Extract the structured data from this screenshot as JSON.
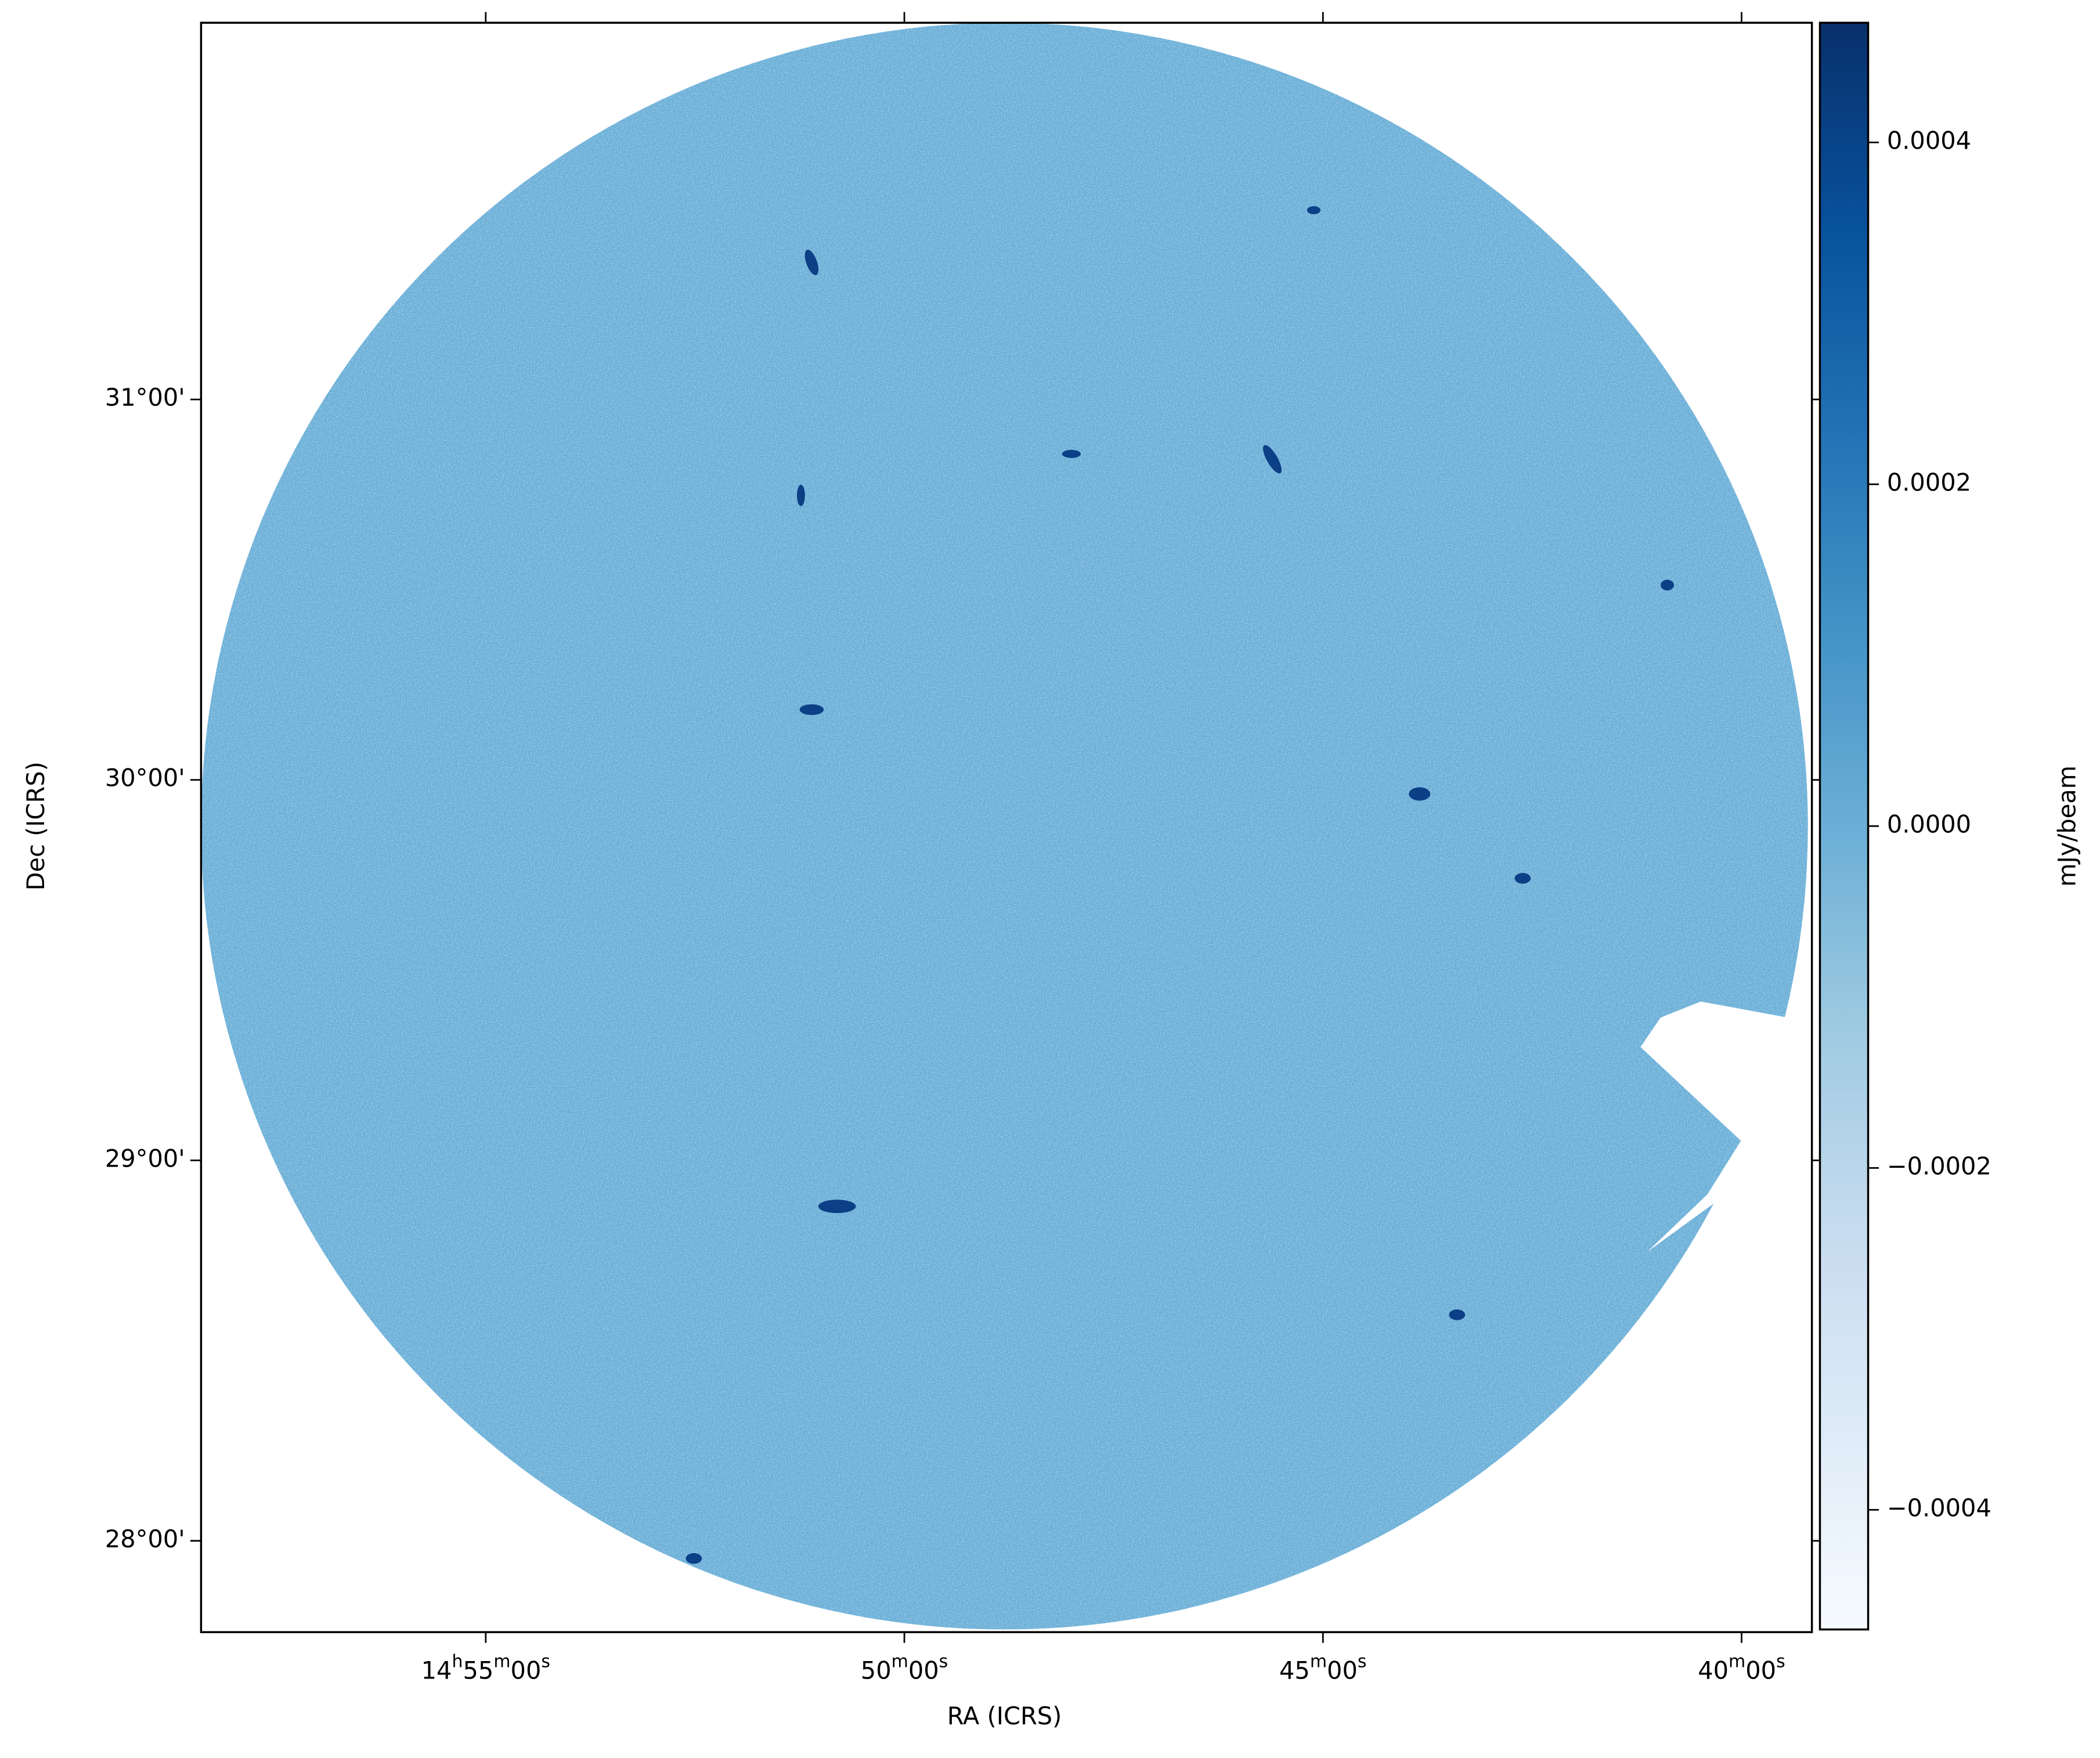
{
  "chart_data": {
    "type": "image",
    "xlabel": "RA (ICRS)",
    "ylabel": "Dec (ICRS)",
    "xlim": [
      224.6,
      219.79
    ],
    "xticks": [
      {
        "value": 223.75,
        "label": "14h55m00s"
      },
      {
        "value": 222.5,
        "label": "50m00s"
      },
      {
        "value": 221.25,
        "label": "45m00s"
      },
      {
        "value": 220.0,
        "label": "40m00s"
      }
    ],
    "ylim": [
      27.76,
      31.99
    ],
    "yticks": [
      {
        "value": 31,
        "label": "31°00'"
      },
      {
        "value": 30,
        "label": "30°00'"
      },
      {
        "value": 29,
        "label": "29°00'"
      },
      {
        "value": 28,
        "label": "28°00'"
      }
    ],
    "colorbar": {
      "label": "mJy/beam",
      "lim": [
        -0.00047,
        0.00047
      ],
      "ticks": [
        0.0004,
        0.0002,
        {
          "value": 0,
          "label": "0.0000"
        },
        {
          "value": -0.0002,
          "label": "−0.0002"
        },
        {
          "value": -0.0004,
          "label": "−0.0004"
        }
      ],
      "colors": [
        "#f7fbff",
        "#deebf7",
        "#c6dbef",
        "#9ecae1",
        "#6baed6",
        "#4292c6",
        "#2171b5",
        "#08519c",
        "#08306b"
      ]
    }
  }
}
